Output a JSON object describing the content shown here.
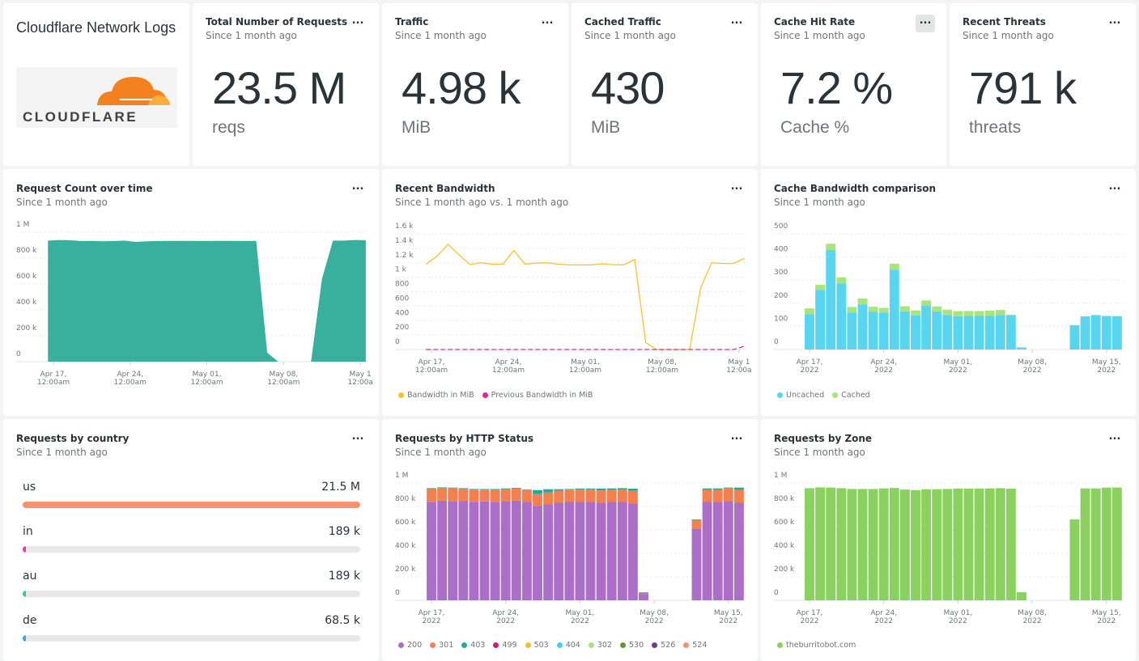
{
  "dashboard": {
    "title": "Cloudflare Network Logs",
    "logo_text": "CLOUDFLARE"
  },
  "stats": [
    {
      "title": "Total Number of Requests",
      "subtitle": "Since 1 month ago",
      "value": "23.5 M",
      "unit": "reqs"
    },
    {
      "title": "Traffic",
      "subtitle": "Since 1 month ago",
      "value": "4.98 k",
      "unit": "MiB"
    },
    {
      "title": "Cached Traffic",
      "subtitle": "Since 1 month ago",
      "value": "430",
      "unit": "MiB"
    },
    {
      "title": "Cache Hit Rate",
      "subtitle": "Since 1 month ago",
      "value": "7.2 %",
      "unit": "Cache %",
      "menu_active": true
    },
    {
      "title": "Recent Threats",
      "subtitle": "Since 1 month ago",
      "value": "791 k",
      "unit": "threats"
    }
  ],
  "menu_label": "...",
  "countries": {
    "title": "Requests by country",
    "subtitle": "Since 1 month ago",
    "items": [
      {
        "name": "us",
        "value": "21.5 M",
        "fraction": 1.0,
        "color": "#f8916f"
      },
      {
        "name": "in",
        "value": "189 k",
        "fraction": 0.0088,
        "color": "#e0409e"
      },
      {
        "name": "au",
        "value": "189 k",
        "fraction": 0.0088,
        "color": "#3cc3a8"
      },
      {
        "name": "de",
        "value": "68.5 k",
        "fraction": 0.0032,
        "color": "#3ea3dd"
      }
    ]
  },
  "chart_data": [
    {
      "type": "area",
      "title": "Request Count over time",
      "subtitle": "Since 1 month ago",
      "ylim": [
        0,
        1000000
      ],
      "y_ticks": [
        "0",
        "200 k",
        "400 k",
        "600 k",
        "800 k",
        "1 M"
      ],
      "x_ticks": [
        [
          "Apr 17,",
          "12:00am"
        ],
        [
          "Apr 24,",
          "12:00am"
        ],
        [
          "May 01,",
          "12:00am"
        ],
        [
          "May 08,",
          "12:00am"
        ],
        [
          "May 1",
          "12:00a"
        ]
      ],
      "x_tick_dates": [
        "2022-04-17",
        "2022-04-24",
        "2022-05-01",
        "2022-05-08",
        "2022-05-15"
      ],
      "grid": true,
      "x": [
        "2022-04-16T12:00",
        "2022-04-17T12:00",
        "2022-04-18T12:00",
        "2022-04-19T12:00",
        "2022-04-20T12:00",
        "2022-04-21T12:00",
        "2022-04-22T12:00",
        "2022-04-23T12:00",
        "2022-04-24T12:00",
        "2022-04-25T12:00",
        "2022-04-26T12:00",
        "2022-04-27T12:00",
        "2022-04-28T12:00",
        "2022-04-29T12:00",
        "2022-04-30T12:00",
        "2022-05-01T12:00",
        "2022-05-02T12:00",
        "2022-05-03T12:00",
        "2022-05-04T12:00",
        "2022-05-05T12:00",
        "2022-05-06T12:00",
        "2022-05-07T12:00",
        "2022-05-08T12:00",
        "2022-05-09T12:00",
        "2022-05-10T12:00",
        "2022-05-11T12:00",
        "2022-05-12T12:00",
        "2022-05-13T12:00",
        "2022-05-14T12:00",
        "2022-05-15T12:00"
      ],
      "series": [
        {
          "color": "#39b09d",
          "values": [
            935000,
            940000,
            938000,
            932000,
            933000,
            930000,
            932000,
            935000,
            925000,
            930000,
            932000,
            933000,
            933000,
            933000,
            932000,
            933000,
            933000,
            933000,
            932000,
            933000,
            70000,
            0,
            0,
            0,
            0,
            640000,
            935000,
            935000,
            940000,
            938000
          ]
        }
      ]
    },
    {
      "type": "line",
      "title": "Recent Bandwidth",
      "subtitle": "Since 1 month ago vs. 1 month ago",
      "ylim": [
        0,
        1600
      ],
      "y_ticks": [
        "0",
        "200",
        "400",
        "600",
        "800",
        "1 k",
        "1.2 k",
        "1.4 k",
        "1.6 k"
      ],
      "x_ticks": [
        [
          "Apr 17,",
          "12:00am"
        ],
        [
          "Apr 24,",
          "12:00am"
        ],
        [
          "May 01,",
          "12:00am"
        ],
        [
          "May 08,",
          "12:00am"
        ],
        [
          "May 1",
          "12:00a"
        ]
      ],
      "x_tick_dates": [
        "2022-04-17",
        "2022-04-24",
        "2022-05-01",
        "2022-05-08",
        "2022-05-15"
      ],
      "grid": true,
      "legend": "bottom-left",
      "x": [
        "2022-04-16T12:00",
        "2022-04-17T12:00",
        "2022-04-18T12:00",
        "2022-04-19T12:00",
        "2022-04-20T12:00",
        "2022-04-21T12:00",
        "2022-04-22T12:00",
        "2022-04-23T12:00",
        "2022-04-24T12:00",
        "2022-04-25T12:00",
        "2022-04-26T12:00",
        "2022-04-27T12:00",
        "2022-04-28T12:00",
        "2022-04-29T12:00",
        "2022-04-30T12:00",
        "2022-05-01T12:00",
        "2022-05-02T12:00",
        "2022-05-03T12:00",
        "2022-05-04T12:00",
        "2022-05-05T12:00",
        "2022-05-06T12:00",
        "2022-05-07T12:00",
        "2022-05-08T12:00",
        "2022-05-09T12:00",
        "2022-05-10T12:00",
        "2022-05-11T12:00",
        "2022-05-12T12:00",
        "2022-05-13T12:00",
        "2022-05-14T12:00",
        "2022-05-15T12:00"
      ],
      "series": [
        {
          "name": "Bandwidth in MiB",
          "color": "#f9c12f",
          "values": [
            1180,
            1290,
            1455,
            1310,
            1175,
            1200,
            1180,
            1180,
            1370,
            1180,
            1195,
            1200,
            1180,
            1170,
            1170,
            1170,
            1185,
            1175,
            1170,
            1245,
            95,
            0,
            0,
            0,
            0,
            850,
            1200,
            1190,
            1190,
            1260
          ]
        },
        {
          "name": "Previous Bandwidth in MiB",
          "color": "#d62a90",
          "dashed": true,
          "values": [
            0,
            0,
            0,
            0,
            0,
            0,
            0,
            0,
            0,
            0,
            0,
            0,
            0,
            0,
            0,
            0,
            0,
            0,
            0,
            0,
            0,
            0,
            0,
            0,
            0,
            0,
            0,
            0,
            0,
            45
          ]
        }
      ]
    },
    {
      "type": "bar",
      "stacked": true,
      "title": "Cache Bandwidth comparison",
      "subtitle": "Since 1 month ago",
      "ylim": [
        0,
        500
      ],
      "y_ticks": [
        "0",
        "100",
        "200",
        "300",
        "400",
        "500"
      ],
      "x_ticks": [
        [
          "Apr 17,",
          "2022"
        ],
        [
          "Apr 24,",
          "2022"
        ],
        [
          "May 01,",
          "2022"
        ],
        [
          "May 08,",
          "2022"
        ],
        [
          "May 15,",
          "2022"
        ]
      ],
      "x_tick_dates": [
        "2022-04-17",
        "2022-04-24",
        "2022-05-01",
        "2022-05-08",
        "2022-05-15"
      ],
      "grid": true,
      "legend": "bottom-left",
      "x": [
        "2022-04-17",
        "2022-04-18",
        "2022-04-19",
        "2022-04-20",
        "2022-04-21",
        "2022-04-22",
        "2022-04-23",
        "2022-04-24",
        "2022-04-25",
        "2022-04-26",
        "2022-04-27",
        "2022-04-28",
        "2022-04-29",
        "2022-04-30",
        "2022-05-01",
        "2022-05-02",
        "2022-05-03",
        "2022-05-04",
        "2022-05-05",
        "2022-05-06",
        "2022-05-07",
        "2022-05-08",
        "2022-05-09",
        "2022-05-10",
        "2022-05-11",
        "2022-05-12",
        "2022-05-13",
        "2022-05-14",
        "2022-05-15",
        "2022-05-16"
      ],
      "series": [
        {
          "name": "Uncached",
          "color": "#5ad5f0",
          "values": [
            153,
            258,
            430,
            286,
            160,
            195,
            164,
            160,
            345,
            165,
            147,
            190,
            165,
            149,
            144,
            145,
            145,
            145,
            149,
            148,
            8,
            0,
            0,
            0,
            0,
            105,
            143,
            149,
            145,
            144
          ]
        },
        {
          "name": "Cached",
          "color": "#a9e57c",
          "values": [
            25,
            22,
            27,
            26,
            24,
            26,
            21,
            20,
            26,
            22,
            22,
            22,
            21,
            23,
            22,
            21,
            21,
            23,
            22,
            3,
            2,
            0,
            0,
            0,
            0,
            0,
            0,
            0,
            0,
            0
          ]
        }
      ]
    },
    {
      "type": "bar",
      "stacked": true,
      "title": "Requests by HTTP Status",
      "subtitle": "Since 1 month ago",
      "ylim": [
        0,
        1000000
      ],
      "y_ticks": [
        "0",
        "200 k",
        "400 k",
        "600 k",
        "800 k",
        "1 M"
      ],
      "x_ticks": [
        [
          "Apr 17,",
          "2022"
        ],
        [
          "Apr 24,",
          "2022"
        ],
        [
          "May 01,",
          "2022"
        ],
        [
          "May 08,",
          "2022"
        ],
        [
          "May 15,",
          "2022"
        ]
      ],
      "x_tick_dates": [
        "2022-04-17",
        "2022-04-24",
        "2022-05-01",
        "2022-05-08",
        "2022-05-15"
      ],
      "grid": true,
      "legend": "bottom-left",
      "x": [
        "2022-04-17",
        "2022-04-18",
        "2022-04-19",
        "2022-04-20",
        "2022-04-21",
        "2022-04-22",
        "2022-04-23",
        "2022-04-24",
        "2022-04-25",
        "2022-04-26",
        "2022-04-27",
        "2022-04-28",
        "2022-04-29",
        "2022-04-30",
        "2022-05-01",
        "2022-05-02",
        "2022-05-03",
        "2022-05-04",
        "2022-05-05",
        "2022-05-06",
        "2022-05-07",
        "2022-05-08",
        "2022-05-09",
        "2022-05-10",
        "2022-05-11",
        "2022-05-12",
        "2022-05-13",
        "2022-05-14",
        "2022-05-15",
        "2022-05-16"
      ],
      "series": [
        {
          "name": "200",
          "color": "#ab6fc7",
          "values": [
            840000,
            850000,
            847000,
            845000,
            840000,
            843000,
            840000,
            847000,
            850000,
            838000,
            806000,
            820000,
            834000,
            838000,
            838000,
            838000,
            831000,
            838000,
            838000,
            824000,
            55000,
            0,
            0,
            0,
            0,
            610000,
            838000,
            838000,
            847000,
            834000
          ]
        },
        {
          "name": "301",
          "color": "#f67f50",
          "values": [
            109000,
            108000,
            109000,
            104000,
            104000,
            101000,
            104000,
            100000,
            101000,
            99000,
            99000,
            99000,
            101000,
            106000,
            106000,
            106000,
            106000,
            104000,
            106000,
            109000,
            10000,
            0,
            0,
            0,
            0,
            76000,
            104000,
            104000,
            107000,
            106000
          ]
        },
        {
          "name": "403",
          "color": "#28a996",
          "values": [
            7000,
            5000,
            5000,
            7000,
            5000,
            5000,
            5000,
            7000,
            7000,
            7000,
            35000,
            28000,
            12000,
            5000,
            9000,
            9000,
            16000,
            12000,
            12000,
            19000,
            4000,
            0,
            0,
            0,
            0,
            4000,
            12000,
            12000,
            7000,
            21000
          ]
        }
      ],
      "legend_entries": [
        {
          "name": "200",
          "color": "#ab6fc7"
        },
        {
          "name": "301",
          "color": "#f67f50"
        },
        {
          "name": "403",
          "color": "#28a996"
        },
        {
          "name": "499",
          "color": "#d1197c"
        },
        {
          "name": "503",
          "color": "#fbbf24"
        },
        {
          "name": "404",
          "color": "#48cfee"
        },
        {
          "name": "302",
          "color": "#a6e37f"
        },
        {
          "name": "530",
          "color": "#5c9a2f"
        },
        {
          "name": "526",
          "color": "#6f3c86"
        },
        {
          "name": "524",
          "color": "#f99170"
        }
      ]
    },
    {
      "type": "bar",
      "title": "Requests by Zone",
      "subtitle": "Since 1 month ago",
      "ylim": [
        0,
        1000000
      ],
      "y_ticks": [
        "0",
        "200 k",
        "400 k",
        "600 k",
        "800 k",
        "1 M"
      ],
      "x_ticks": [
        [
          "Apr 17,",
          "2022"
        ],
        [
          "Apr 24,",
          "2022"
        ],
        [
          "May 01,",
          "2022"
        ],
        [
          "May 08,",
          "2022"
        ],
        [
          "May 15,",
          "2022"
        ]
      ],
      "x_tick_dates": [
        "2022-04-17",
        "2022-04-24",
        "2022-05-01",
        "2022-05-08",
        "2022-05-15"
      ],
      "grid": true,
      "legend": "bottom-left",
      "x": [
        "2022-04-17",
        "2022-04-18",
        "2022-04-19",
        "2022-04-20",
        "2022-04-21",
        "2022-04-22",
        "2022-04-23",
        "2022-04-24",
        "2022-04-25",
        "2022-04-26",
        "2022-04-27",
        "2022-04-28",
        "2022-04-29",
        "2022-04-30",
        "2022-05-01",
        "2022-05-02",
        "2022-05-03",
        "2022-05-04",
        "2022-05-05",
        "2022-05-06",
        "2022-05-07",
        "2022-05-08",
        "2022-05-09",
        "2022-05-10",
        "2022-05-11",
        "2022-05-12",
        "2022-05-13",
        "2022-05-14",
        "2022-05-15",
        "2022-05-16"
      ],
      "series": [
        {
          "name": "theburritobot.com",
          "color": "#8bd15f",
          "values": [
            956000,
            963000,
            961000,
            956000,
            949000,
            949000,
            949000,
            954000,
            958000,
            944000,
            940000,
            947000,
            947000,
            949000,
            953000,
            953000,
            953000,
            954000,
            956000,
            952000,
            69000,
            0,
            0,
            0,
            0,
            690000,
            954000,
            954000,
            961000,
            961000
          ]
        }
      ]
    }
  ]
}
